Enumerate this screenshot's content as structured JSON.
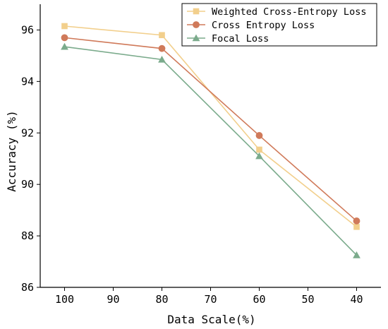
{
  "chart_data": {
    "type": "line",
    "xlabel": "Data Scale(%)",
    "ylabel": "Accuracy (%)",
    "x": [
      100,
      80,
      60,
      40
    ],
    "xlim": [
      105,
      35
    ],
    "ylim": [
      86,
      97
    ],
    "xticks": [
      100,
      90,
      80,
      70,
      60,
      50,
      40
    ],
    "yticks": [
      86,
      88,
      90,
      92,
      94,
      96
    ],
    "x_reversed": true,
    "grid": false,
    "legend_position": "top-right",
    "series": [
      {
        "name": "Weighted Cross-Entropy Loss",
        "values": [
          96.15,
          95.8,
          91.35,
          88.35
        ],
        "color": "#f2cf8c",
        "marker": "square"
      },
      {
        "name": "Cross Entropy Loss",
        "values": [
          95.7,
          95.28,
          91.9,
          88.58
        ],
        "color": "#d07a5a",
        "marker": "circle"
      },
      {
        "name": "Focal Loss",
        "values": [
          95.35,
          94.85,
          91.1,
          87.25
        ],
        "color": "#7bab8c",
        "marker": "triangle"
      }
    ]
  }
}
